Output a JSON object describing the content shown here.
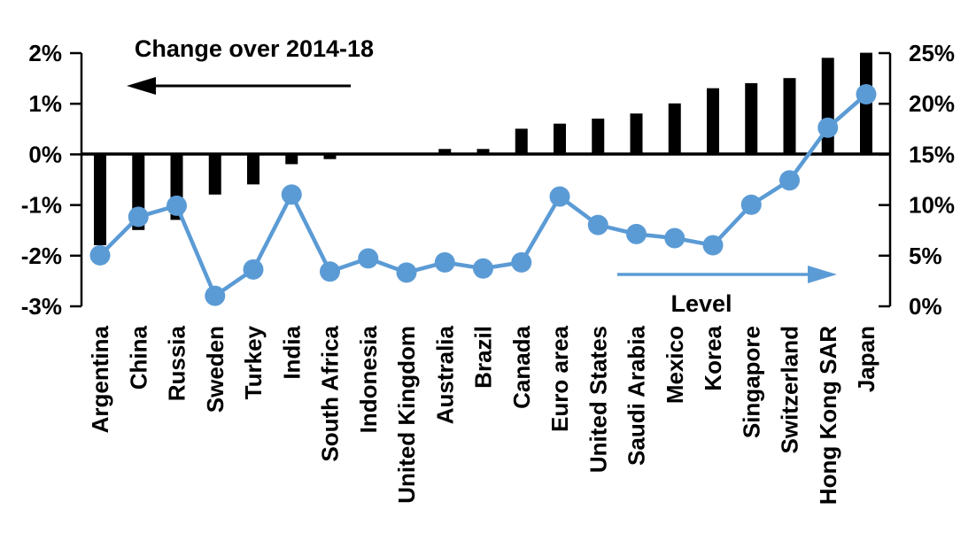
{
  "figure": {
    "background_color": "#ffffff",
    "bar_color": "#000000",
    "line_color": "#5B9BD5",
    "text_color": "#000000"
  },
  "chart_data": {
    "type": "combo",
    "categories": [
      "Argentina",
      "China",
      "Russia",
      "Sweden",
      "Turkey",
      "India",
      "South Africa",
      "Indonesia",
      "United Kingdom",
      "Australia",
      "Brazil",
      "Canada",
      "Euro area",
      "United States",
      "Saudi Arabia",
      "Mexico",
      "Korea",
      "Singapore",
      "Switzerland",
      "Hong Kong SAR",
      "Japan"
    ],
    "series": [
      {
        "name": "Change over 2014-18",
        "type": "bar",
        "axis": "left",
        "color": "#000000",
        "values": [
          -1.8,
          -1.5,
          -1.3,
          -0.8,
          -0.6,
          -0.2,
          -0.1,
          0.0,
          0.0,
          0.1,
          0.1,
          0.5,
          0.6,
          0.7,
          0.8,
          1.0,
          1.3,
          1.4,
          1.5,
          1.9,
          2.0
        ]
      },
      {
        "name": "Level",
        "type": "line",
        "axis": "right",
        "color": "#5B9BD5",
        "values": [
          5.0,
          8.8,
          9.9,
          1.0,
          3.6,
          11.0,
          3.4,
          4.7,
          3.3,
          4.3,
          3.7,
          4.3,
          10.8,
          8.0,
          7.1,
          6.7,
          6.0,
          10.0,
          12.4,
          17.6,
          20.9
        ]
      }
    ],
    "left_axis": {
      "unit": "%",
      "min": -3,
      "max": 2,
      "tick_step": 1,
      "ticks": [
        "2%",
        "1%",
        "0%",
        "-1%",
        "-2%",
        "-3%"
      ]
    },
    "right_axis": {
      "unit": "%",
      "min": 0,
      "max": 25,
      "tick_step": 5,
      "ticks": [
        "25%",
        "20%",
        "15%",
        "10%",
        "5%",
        "0%"
      ]
    },
    "annotations": [
      {
        "text": "Change over 2014-18",
        "arrow_direction": "left",
        "arrow_color": "#000000",
        "refers_to": "bar-series"
      },
      {
        "text": "Level",
        "arrow_direction": "right",
        "arrow_color": "#5B9BD5",
        "refers_to": "line-series"
      }
    ],
    "grid": false,
    "legend_position": "in-plot-annotations"
  }
}
